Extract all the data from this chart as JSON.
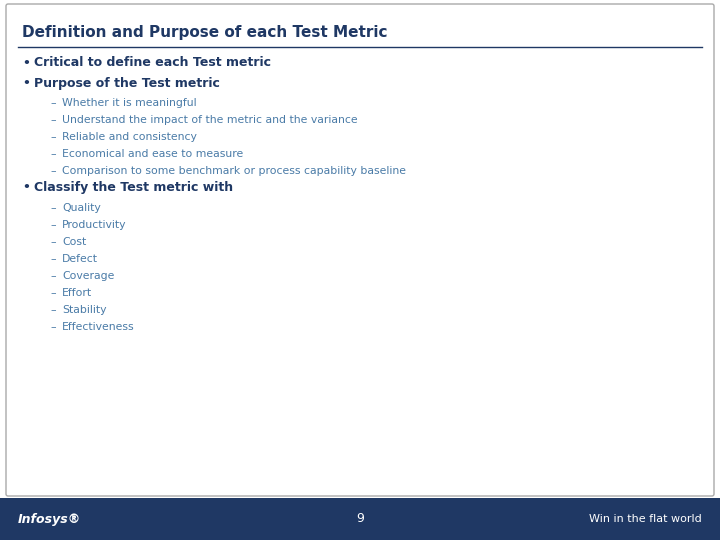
{
  "title": "Definition and Purpose of each Test Metric",
  "title_color": "#1F3864",
  "slide_bg": "#FFFFFF",
  "border_color": "#AAAAAA",
  "footer_bg": "#1F3864",
  "footer_text_left": "Infosys®",
  "footer_text_right": "Win in the flat world",
  "footer_page_num": "9",
  "line_color": "#1F3864",
  "bullet_color": "#1F3864",
  "sub_color": "#4A7BA7",
  "bullet_items": [
    {
      "level": 0,
      "text": "Critical to define each Test metric"
    },
    {
      "level": 0,
      "text": "Purpose of the Test metric"
    },
    {
      "level": 1,
      "text": "Whether it is meaningful"
    },
    {
      "level": 1,
      "text": "Understand the impact of the metric and the variance"
    },
    {
      "level": 1,
      "text": "Reliable and consistency"
    },
    {
      "level": 1,
      "text": "Economical and ease to measure"
    },
    {
      "level": 1,
      "text": "Comparison to some benchmark or process capability baseline"
    },
    {
      "level": 0,
      "text": "Classify the Test metric with"
    },
    {
      "level": 1,
      "text": "Quality"
    },
    {
      "level": 1,
      "text": "Productivity"
    },
    {
      "level": 1,
      "text": "Cost"
    },
    {
      "level": 1,
      "text": "Defect"
    },
    {
      "level": 1,
      "text": "Coverage"
    },
    {
      "level": 1,
      "text": "Effort"
    },
    {
      "level": 1,
      "text": "Stability"
    },
    {
      "level": 1,
      "text": "Effectiveness"
    }
  ],
  "fig_width": 7.2,
  "fig_height": 5.4,
  "dpi": 100
}
